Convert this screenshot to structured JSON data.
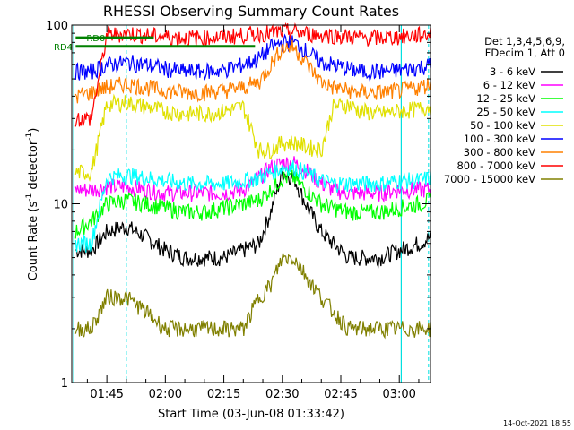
{
  "chart_data": {
    "type": "line",
    "title": "RHESSI Observing Summary Count Rates",
    "xlabel": "Start Time (03-Jun-08 01:33:42)",
    "ylabel_main": "Count Rate (s",
    "ylabel_sup": "-1",
    "ylabel_tail": " detector",
    "ylabel_sup2": "-1",
    "ylabel_end": ")",
    "yscale": "log",
    "ylim": [
      1,
      100
    ],
    "xlim_minutes": [
      96,
      188
    ],
    "x_ticks": [
      {
        "t": 105,
        "label": "01:45"
      },
      {
        "t": 120,
        "label": "02:00"
      },
      {
        "t": 135,
        "label": "02:15"
      },
      {
        "t": 150,
        "label": "02:30"
      },
      {
        "t": 165,
        "label": "02:45"
      },
      {
        "t": 180,
        "label": "03:00"
      }
    ],
    "y_ticks": [
      {
        "v": 1,
        "label": "1"
      },
      {
        "v": 10,
        "label": "10"
      },
      {
        "v": 100,
        "label": "100"
      }
    ],
    "legend_header": [
      "Det 1,3,4,5,6,9,",
      "FDecim 1, Att 0"
    ],
    "series": [
      {
        "name": "3 - 6 keV",
        "color": "#000000",
        "t": [
          97,
          101,
          105,
          110,
          115,
          120,
          125,
          130,
          135,
          140,
          144,
          147,
          150,
          153,
          156,
          160,
          163,
          167,
          170,
          175,
          180,
          185,
          188
        ],
        "values": [
          5.5,
          5.5,
          7,
          7.5,
          6.5,
          5.5,
          5,
          5,
          5,
          5.5,
          6,
          9,
          15,
          14,
          10,
          7,
          6,
          5,
          5,
          5,
          5.5,
          6,
          6.5
        ]
      },
      {
        "name": "6 - 12 keV",
        "color": "#ff00ff",
        "t": [
          97,
          101,
          105,
          110,
          115,
          120,
          125,
          130,
          135,
          140,
          144,
          147,
          150,
          153,
          156,
          160,
          163,
          167,
          170,
          175,
          180,
          185,
          188
        ],
        "values": [
          12,
          12,
          12.5,
          12.5,
          12,
          11.5,
          11.5,
          11.5,
          11.5,
          12,
          14,
          16,
          17,
          17,
          15.5,
          13,
          12,
          11.5,
          11.5,
          11.5,
          12,
          12,
          12
        ]
      },
      {
        "name": "12 - 25 keV",
        "color": "#00ff00",
        "t": [
          97,
          101,
          105,
          110,
          115,
          120,
          125,
          130,
          135,
          140,
          144,
          147,
          150,
          153,
          156,
          160,
          163,
          167,
          170,
          175,
          180,
          185,
          188
        ],
        "values": [
          7,
          8,
          10,
          10.5,
          10,
          9.5,
          9,
          9,
          9.5,
          10,
          10.5,
          12,
          14,
          14,
          12,
          10,
          9.5,
          9,
          9,
          9,
          9.5,
          10,
          10.5
        ]
      },
      {
        "name": "25 - 50 keV",
        "color": "#00ffff",
        "t": [
          97,
          101,
          105,
          110,
          115,
          120,
          125,
          130,
          135,
          140,
          144,
          147,
          150,
          153,
          156,
          160,
          163,
          167,
          170,
          175,
          180,
          185,
          188
        ],
        "values": [
          6,
          6,
          14,
          14.5,
          14,
          13.5,
          13,
          13,
          13,
          13.5,
          14,
          15,
          16,
          16,
          15,
          13.5,
          13,
          13,
          13,
          13,
          13.5,
          13.5,
          14
        ]
      },
      {
        "name": "50 - 100 keV",
        "color": "#e0e000",
        "t": [
          97,
          101,
          105,
          110,
          115,
          120,
          125,
          130,
          135,
          140,
          144,
          147,
          150,
          153,
          156,
          160,
          163,
          167,
          170,
          175,
          180,
          185,
          188
        ],
        "values": [
          15,
          15,
          36,
          37,
          35,
          33,
          32,
          32,
          33,
          35,
          20,
          20,
          22,
          22,
          21,
          20,
          35,
          36,
          33,
          32,
          33,
          34,
          35
        ]
      },
      {
        "name": "100 - 300 keV",
        "color": "#0000ff",
        "t": [
          97,
          101,
          105,
          110,
          115,
          120,
          125,
          130,
          135,
          140,
          144,
          147,
          150,
          153,
          156,
          160,
          163,
          167,
          170,
          175,
          180,
          185,
          188
        ],
        "values": [
          55,
          55,
          60,
          62,
          60,
          57,
          55,
          55,
          56,
          60,
          65,
          75,
          80,
          80,
          72,
          62,
          60,
          57,
          55,
          55,
          56,
          58,
          60
        ]
      },
      {
        "name": "300 - 800 keV",
        "color": "#ff8000",
        "t": [
          97,
          101,
          105,
          110,
          115,
          120,
          125,
          130,
          135,
          140,
          144,
          147,
          150,
          153,
          156,
          160,
          163,
          167,
          170,
          175,
          180,
          185,
          188
        ],
        "values": [
          40,
          42,
          45,
          47,
          45,
          43,
          42,
          42,
          43,
          45,
          48,
          60,
          75,
          75,
          62,
          48,
          45,
          43,
          42,
          42,
          43,
          45,
          47
        ]
      },
      {
        "name": "800 - 7000 keV",
        "color": "#ff0000",
        "t": [
          97,
          101,
          105,
          110,
          115,
          120,
          125,
          130,
          135,
          140,
          144,
          147,
          150,
          153,
          156,
          160,
          163,
          167,
          170,
          175,
          180,
          185,
          188
        ],
        "values": [
          30,
          30,
          88,
          90,
          88,
          86,
          85,
          85,
          86,
          88,
          90,
          90,
          92,
          92,
          90,
          88,
          88,
          86,
          85,
          85,
          86,
          88,
          90
        ]
      },
      {
        "name": "7000 - 15000 keV",
        "color": "#808000",
        "t": [
          97,
          101,
          105,
          110,
          115,
          120,
          125,
          130,
          135,
          140,
          144,
          147,
          150,
          153,
          156,
          160,
          163,
          167,
          170,
          175,
          180,
          185,
          188
        ],
        "values": [
          2,
          2,
          3,
          3,
          2.5,
          2,
          2,
          2,
          2,
          2,
          3,
          3.5,
          5,
          5,
          4,
          3,
          2.5,
          2,
          2,
          2,
          2,
          2,
          2
        ]
      }
    ],
    "flags": [
      {
        "label": "RD0",
        "value": 85,
        "t": [
          97,
          117
        ],
        "color": "#008000"
      },
      {
        "label": "RD4",
        "value": 76,
        "t": [
          97,
          143
        ],
        "color": "#008000"
      }
    ],
    "night_markers_t": [
      96.5,
      180.5
    ],
    "saa_markers_t": [
      110,
      187.5
    ],
    "timestamp": "14-Oct-2021 18:55"
  }
}
